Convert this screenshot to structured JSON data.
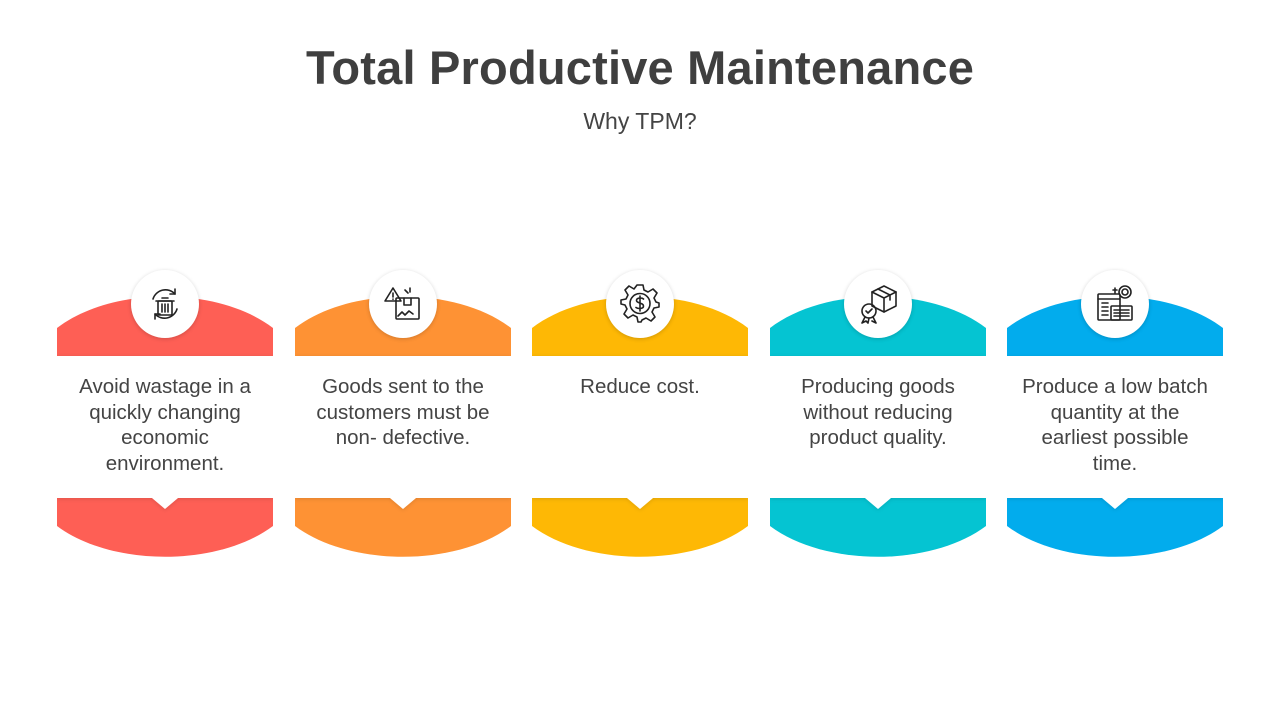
{
  "header": {
    "title": "Total Productive Maintenance",
    "subtitle": "Why TPM?"
  },
  "cards": [
    {
      "text": "Avoid wastage in a quickly changing economic environment.",
      "color": "#fe5f55",
      "icon": "recycle-bin-icon"
    },
    {
      "text": "Goods sent to the customers must be non- defective.",
      "color": "#fe9234",
      "icon": "warning-package-icon"
    },
    {
      "text": "Reduce cost.",
      "color": "#feb805",
      "icon": "dollar-gear-icon"
    },
    {
      "text": "Producing goods without reducing product quality.",
      "color": "#05c4d2",
      "icon": "quality-box-icon"
    },
    {
      "text": "Produce a low batch quantity at the earliest possible time.",
      "color": "#02aced",
      "icon": "production-control-icon"
    }
  ]
}
